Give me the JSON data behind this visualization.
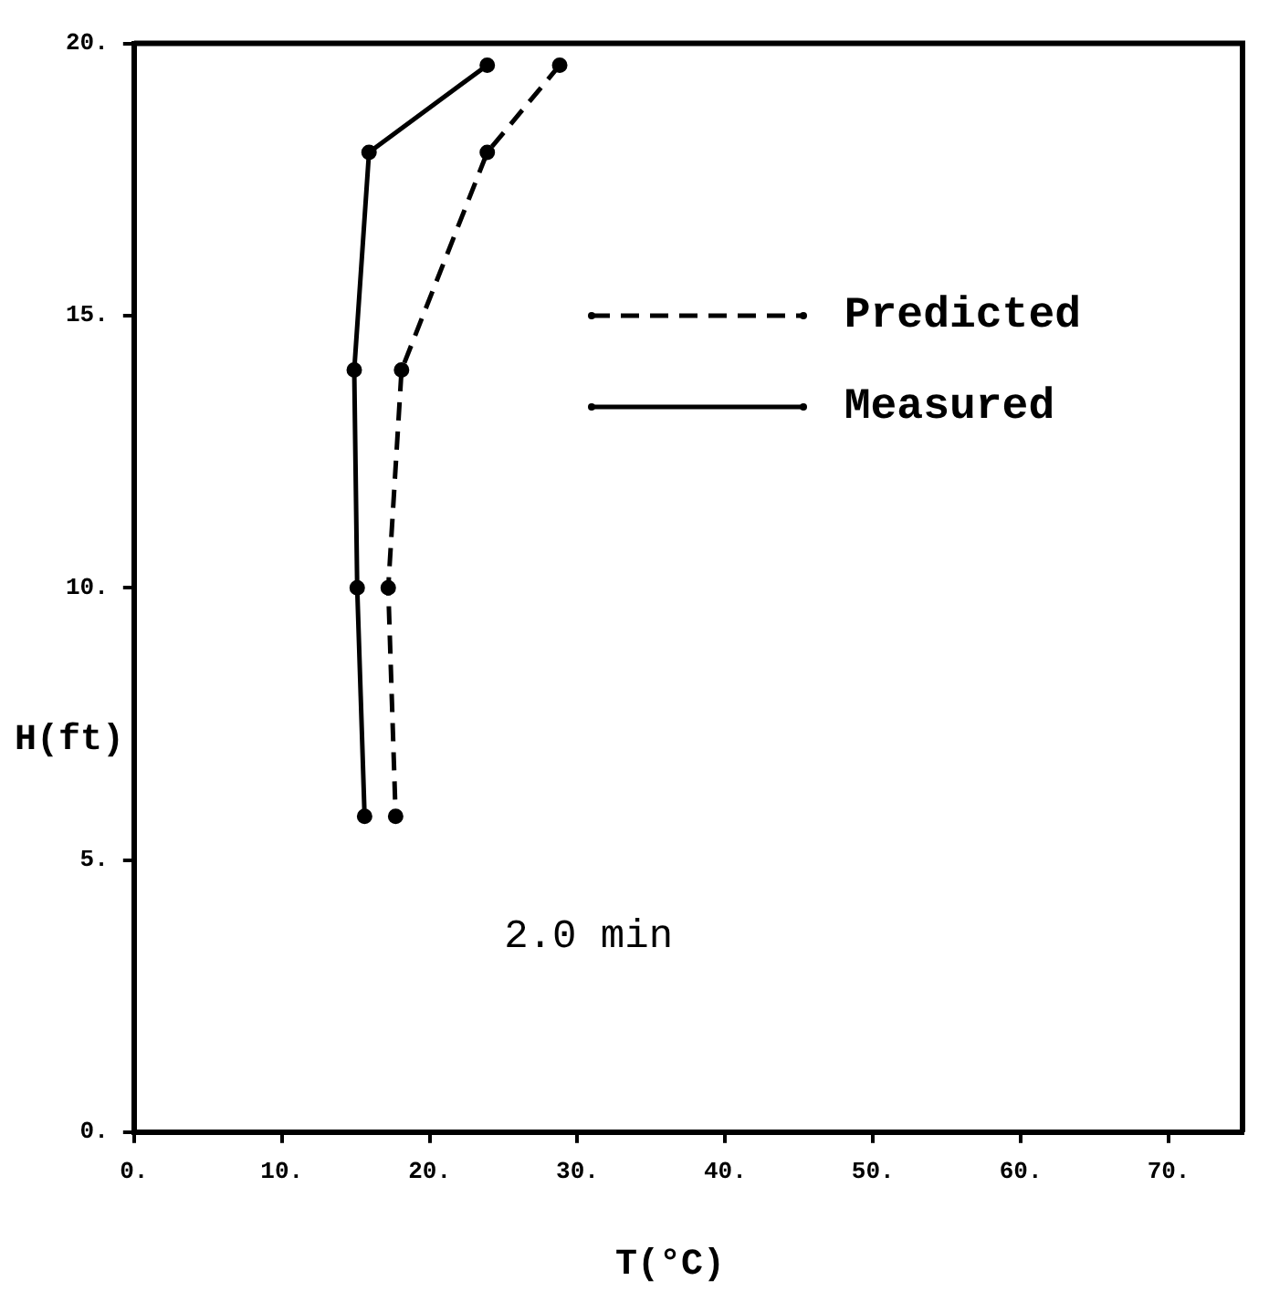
{
  "chart_data": {
    "type": "line",
    "xlabel": "T(°C)",
    "ylabel": "H(ft)",
    "xlim": [
      0,
      75
    ],
    "ylim": [
      0,
      20
    ],
    "xticks": [
      {
        "value": 0,
        "label": "0."
      },
      {
        "value": 10,
        "label": "10."
      },
      {
        "value": 20,
        "label": "20."
      },
      {
        "value": 30,
        "label": "30."
      },
      {
        "value": 40,
        "label": "40."
      },
      {
        "value": 50,
        "label": "50."
      },
      {
        "value": 60,
        "label": "60."
      },
      {
        "value": 70,
        "label": "70."
      }
    ],
    "yticks": [
      {
        "value": 0,
        "label": "0."
      },
      {
        "value": 5,
        "label": "5."
      },
      {
        "value": 10,
        "label": "10."
      },
      {
        "value": 15,
        "label": "15."
      },
      {
        "value": 20,
        "label": "20."
      }
    ],
    "series": [
      {
        "name": "Predicted",
        "color": "#000000",
        "line_style": "dashed",
        "x": [
          28.8,
          23.9,
          18.1,
          17.2,
          17.7
        ],
        "values": [
          19.6,
          18.0,
          14.0,
          10.0,
          5.8
        ]
      },
      {
        "name": "Measured",
        "color": "#000000",
        "line_style": "solid",
        "x": [
          23.9,
          15.9,
          14.9,
          15.1,
          15.6
        ],
        "values": [
          19.6,
          18.0,
          14.0,
          10.0,
          5.8
        ]
      }
    ],
    "annotations": [
      "2.0 min"
    ],
    "marker": "circle",
    "grid": false,
    "legend": "top right"
  }
}
